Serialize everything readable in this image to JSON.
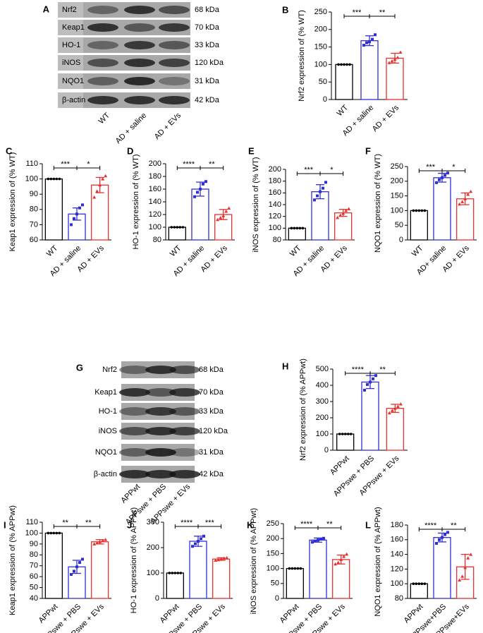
{
  "blots": [
    {
      "panel": "A",
      "proteins": [
        "Nrf2",
        "Keap1",
        "HO-1",
        "iNOS",
        "NQO1",
        "β-actin"
      ],
      "sizes": [
        "68 kDa",
        "70 kDa",
        "33 kDa",
        "120 kDa",
        "31 kDa",
        "42 kDa"
      ],
      "lanes": [
        "WT",
        "AD + saline",
        "AD + EVs"
      ]
    },
    {
      "panel": "G",
      "proteins": [
        "Nrf2",
        "Keap1",
        "HO-1",
        "iNOS",
        "NQO1",
        "β-actin"
      ],
      "sizes": [
        "68 kDa",
        "70 kDa",
        "33 kDa",
        "120 kDa",
        "31 kDa",
        "42 kDa"
      ],
      "lanes": [
        "APPwt",
        "APPswe + PBS",
        "APPswe + EVs"
      ]
    }
  ],
  "chart_data": [
    {
      "type": "bar",
      "panel": "B",
      "ylabel": "Nrf2 expression of (% WT)",
      "categories": [
        "WT",
        "AD + saline",
        "AD + EVs"
      ],
      "colors": [
        "#000000",
        "#2f2fd8",
        "#e8312f"
      ],
      "values": [
        100,
        168,
        118
      ],
      "errors": [
        0,
        14,
        14
      ],
      "points": [
        [
          100,
          100,
          100,
          100,
          100
        ],
        [
          155,
          162,
          165,
          172,
          185
        ],
        [
          105,
          110,
          115,
          120,
          135
        ]
      ],
      "significance": [
        "***",
        "**"
      ],
      "ylim": [
        0,
        250
      ],
      "yticks": [
        0,
        50,
        100,
        150,
        200,
        250
      ]
    },
    {
      "type": "bar",
      "panel": "C",
      "ylabel": "Keap1 expression of (% WT)",
      "categories": [
        "WT",
        "AD + saline",
        "AD + EVs"
      ],
      "colors": [
        "#000000",
        "#2f2fd8",
        "#e8312f"
      ],
      "values": [
        100,
        77,
        96
      ],
      "errors": [
        0,
        4,
        5
      ],
      "points": [
        [
          100,
          100,
          100,
          100,
          100
        ],
        [
          70,
          74,
          77,
          81,
          83
        ],
        [
          88,
          92,
          96,
          100,
          102
        ]
      ],
      "significance": [
        "***",
        "*"
      ],
      "ylim": [
        60,
        110
      ],
      "yticks": [
        60,
        70,
        80,
        90,
        100,
        110
      ]
    },
    {
      "type": "bar",
      "panel": "D",
      "ylabel": "HO-1 expression of (% WT)",
      "categories": [
        "WT",
        "AD + saline",
        "AD + EVs"
      ],
      "colors": [
        "#000000",
        "#2f2fd8",
        "#e8312f"
      ],
      "values": [
        100,
        160,
        120
      ],
      "errors": [
        0,
        11,
        8
      ],
      "points": [
        [
          100,
          100,
          100,
          100,
          100
        ],
        [
          148,
          155,
          160,
          168,
          172
        ],
        [
          112,
          115,
          118,
          125,
          130
        ]
      ],
      "significance": [
        "****",
        "**"
      ],
      "ylim": [
        80,
        200
      ],
      "yticks": [
        80,
        100,
        120,
        140,
        160,
        180,
        200
      ]
    },
    {
      "type": "bar",
      "panel": "E",
      "ylabel": "iNOS expression of (% WT)",
      "categories": [
        "WT",
        "AD + saline",
        "AD + EVs"
      ],
      "colors": [
        "#000000",
        "#2f2fd8",
        "#e8312f"
      ],
      "values": [
        100,
        162,
        126
      ],
      "errors": [
        0,
        12,
        6
      ],
      "points": [
        [
          100,
          100,
          100,
          100,
          100
        ],
        [
          148,
          155,
          162,
          168,
          178
        ],
        [
          118,
          122,
          125,
          130,
          133
        ]
      ],
      "significance": [
        "***",
        "*"
      ],
      "ylim": [
        80,
        200
      ],
      "yticks": [
        80,
        100,
        120,
        140,
        160,
        180,
        200
      ]
    },
    {
      "type": "bar",
      "panel": "F",
      "ylabel": "NQO1 expression of (% WT)",
      "categories": [
        "WT",
        "AD+ saline",
        "AD + EVs"
      ],
      "colors": [
        "#000000",
        "#2f2fd8",
        "#e8312f"
      ],
      "values": [
        100,
        212,
        140
      ],
      "errors": [
        0,
        15,
        20
      ],
      "points": [
        [
          100,
          100,
          100,
          100,
          100
        ],
        [
          195,
          205,
          212,
          220,
          228
        ],
        [
          122,
          130,
          140,
          155,
          165
        ]
      ],
      "significance": [
        "***",
        "*"
      ],
      "ylim": [
        0,
        250
      ],
      "yticks": [
        0,
        50,
        100,
        150,
        200,
        250
      ]
    },
    {
      "type": "bar",
      "panel": "H",
      "ylabel": "Nrf2 expression of (% APPwt)",
      "categories": [
        "APPwt",
        "APPswe + PBS",
        "APPswe + EVs"
      ],
      "colors": [
        "#000000",
        "#2f2fd8",
        "#e8312f"
      ],
      "values": [
        100,
        420,
        258
      ],
      "errors": [
        0,
        40,
        25
      ],
      "points": [
        [
          100,
          100,
          100,
          100,
          100
        ],
        [
          370,
          405,
          420,
          440,
          460
        ],
        [
          230,
          245,
          258,
          270,
          285
        ]
      ],
      "significance": [
        "****",
        "**"
      ],
      "ylim": [
        0,
        500
      ],
      "yticks": [
        0,
        100,
        200,
        300,
        400,
        500
      ]
    },
    {
      "type": "bar",
      "panel": "I",
      "ylabel": "Keap1 expression of (% APPwt)",
      "categories": [
        "APPwt",
        "APPswe + PBS",
        "APPswe + EVs"
      ],
      "colors": [
        "#000000",
        "#2f2fd8",
        "#e8312f"
      ],
      "values": [
        100,
        69,
        92
      ],
      "errors": [
        0,
        6,
        2
      ],
      "points": [
        [
          100,
          100,
          100,
          100,
          100
        ],
        [
          62,
          65,
          69,
          73,
          76
        ],
        [
          90,
          91,
          92,
          93,
          94
        ]
      ],
      "significance": [
        "**",
        "**"
      ],
      "ylim": [
        40,
        110
      ],
      "yticks": [
        40,
        50,
        60,
        70,
        80,
        90,
        100,
        110
      ]
    },
    {
      "type": "bar",
      "panel": "J",
      "ylabel": "HO-1 expression of (% APPwt)",
      "categories": [
        "APPwt",
        "APPswe + PBS",
        "APPswe + EVs"
      ],
      "colors": [
        "#000000",
        "#2f2fd8",
        "#e8312f"
      ],
      "values": [
        100,
        225,
        155
      ],
      "errors": [
        0,
        20,
        5
      ],
      "points": [
        [
          100,
          100,
          100,
          100,
          100
        ],
        [
          205,
          215,
          225,
          235,
          245
        ],
        [
          150,
          152,
          155,
          158,
          160
        ]
      ],
      "significance": [
        "****",
        "***"
      ],
      "ylim": [
        0,
        300
      ],
      "yticks": [
        0,
        100,
        200,
        300
      ]
    },
    {
      "type": "bar",
      "panel": "K",
      "ylabel": "iNOS expression of (% APPwt)",
      "categories": [
        "APPwt",
        "APPswe + PBS",
        "APPswe + EVs"
      ],
      "colors": [
        "#000000",
        "#2f2fd8",
        "#e8312f"
      ],
      "values": [
        100,
        195,
        130
      ],
      "errors": [
        0,
        7,
        15
      ],
      "points": [
        [
          100,
          100,
          100,
          100,
          100
        ],
        [
          188,
          192,
          195,
          198,
          201
        ],
        [
          115,
          120,
          130,
          140,
          148
        ]
      ],
      "significance": [
        "****",
        "**"
      ],
      "ylim": [
        0,
        250
      ],
      "yticks": [
        0,
        50,
        100,
        150,
        200,
        250
      ]
    },
    {
      "type": "bar",
      "panel": "L",
      "ylabel": "NQO1 expression of (% APPwt)",
      "categories": [
        "APPwt",
        "APPswe+PBS",
        "APPswe+EVs"
      ],
      "colors": [
        "#000000",
        "#2f2fd8",
        "#e8312f"
      ],
      "values": [
        100,
        163,
        123
      ],
      "errors": [
        0,
        6,
        17
      ],
      "points": [
        [
          100,
          100,
          100,
          100,
          100
        ],
        [
          155,
          160,
          163,
          167,
          170
        ],
        [
          105,
          110,
          122,
          135,
          140
        ]
      ],
      "significance": [
        "****",
        "**"
      ],
      "ylim": [
        80,
        180
      ],
      "yticks": [
        80,
        100,
        120,
        140,
        160,
        180
      ]
    }
  ]
}
